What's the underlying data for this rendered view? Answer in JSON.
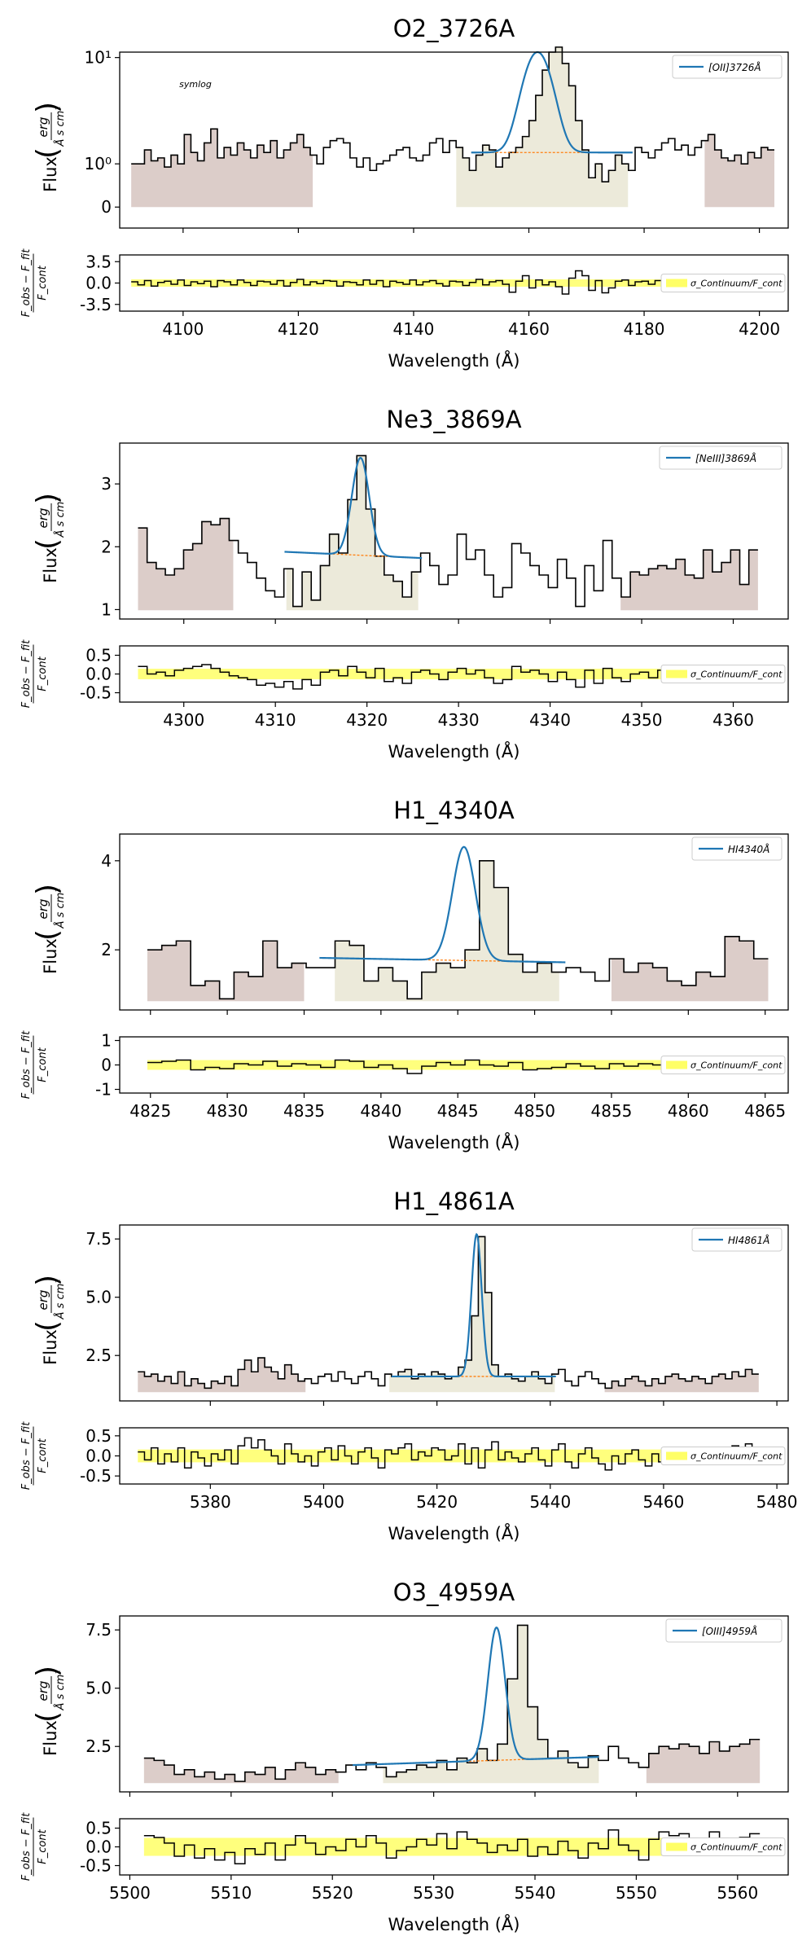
{
  "chart_data": [
    {
      "type": "line",
      "title": "O2_3726A",
      "ylabel": "Flux",
      "ylabel_unit_num": "erg",
      "ylabel_unit_den": "Å s cm²",
      "annotation": "symlog",
      "legend": "[OII]3726Å",
      "xlabel": "Wavelength (Å)",
      "xlim": [
        4089,
        4205
      ],
      "xticks": [
        4100,
        4120,
        4140,
        4160,
        4180,
        4200
      ],
      "yscale": "symlog",
      "yticks": [
        {
          "v": 0,
          "label": "0"
        },
        {
          "v": 1,
          "label": "10⁰"
        },
        {
          "v": 10,
          "label": "10¹"
        }
      ],
      "ylim": [
        -0.4,
        11
      ],
      "step_x": [
        4091,
        4202.6
      ],
      "flux": [
        1.0,
        1.0,
        1.5,
        1.1,
        1.2,
        0.9,
        1.3,
        1.0,
        2.2,
        1.4,
        1.1,
        1.8,
        2.5,
        1.2,
        1.6,
        1.3,
        1.8,
        1.5,
        1.2,
        1.7,
        1.4,
        1.9,
        1.2,
        1.5,
        1.8,
        2.2,
        1.6,
        1.3,
        1.0,
        1.6,
        1.9,
        2.0,
        1.8,
        1.2,
        0.9,
        1.2,
        0.8,
        1.0,
        1.1,
        1.3,
        1.5,
        1.6,
        1.2,
        1.1,
        1.3,
        1.8,
        2.0,
        1.4,
        1.9,
        1.6,
        1.2,
        0.8,
        1.3,
        1.7,
        1.5,
        0.9,
        1.2,
        1.4,
        1.6,
        2.1,
        3.0,
        5.0,
        8.0,
        11.0,
        12.0,
        9.0,
        6.0,
        3.0,
        1.5,
        0.6,
        1.0,
        0.5,
        0.8,
        1.3,
        1.0,
        0.8,
        1.6,
        1.4,
        1.2,
        1.5,
        1.8,
        2.0,
        1.5,
        1.7,
        1.3,
        1.6,
        1.9,
        2.2,
        1.5,
        1.2,
        1.1,
        1.3,
        1.0,
        1.4,
        1.2,
        1.6,
        1.5
      ],
      "fit": {
        "range": [
          4150,
          4178
        ],
        "continuum": 1.4,
        "amp": 9.6,
        "center": 4161.5,
        "sigma": 2.2
      },
      "cont_regions": [
        [
          4091,
          4122.5
        ],
        [
          4190.5,
          4202.6
        ]
      ],
      "line_region": [
        4147.4,
        4177.2
      ],
      "resid_ylim": [
        -4.6,
        4.6
      ],
      "resid_yticks": [
        {
          "v": 3.5,
          "label": "3.5"
        },
        {
          "v": 0,
          "label": "0.0"
        },
        {
          "v": -3.5,
          "label": "-3.5"
        }
      ],
      "sigma": 0.6,
      "resid": [
        0.2,
        -0.3,
        0.4,
        -0.5,
        0.1,
        0.3,
        -0.2,
        0.5,
        -0.4,
        0.2,
        -0.1,
        0.3,
        -0.6,
        0.4,
        0.2,
        -0.3,
        0.5,
        0.1,
        -0.4,
        0.3,
        0.2,
        -0.2,
        0.4,
        -0.5,
        0.1,
        0.6,
        -0.3,
        0.2,
        -0.1,
        0.4,
        0.3,
        -0.5,
        0.2,
        0.1,
        -0.3,
        0.5,
        -0.2,
        0.4,
        -0.6,
        0.3,
        0.1,
        -0.2,
        0.5,
        -0.3,
        0.2,
        0.4,
        -0.1,
        -0.5,
        0.3,
        0.2,
        -0.4,
        0.1,
        0.6,
        -0.3,
        0.2,
        0.4,
        -0.2,
        -1.5,
        0.3,
        1.2,
        -0.8,
        0.5,
        -0.3,
        0.2,
        -0.6,
        -1.8,
        0.8,
        2.0,
        1.2,
        -1.2,
        0.4,
        -1.6,
        -0.8,
        0.3,
        0.5,
        -0.4,
        0.2,
        0.3,
        -0.2,
        0.4,
        0.1,
        -0.3,
        0.5,
        0.2,
        -0.1,
        0.3,
        -0.4,
        0.2,
        0.5,
        -0.3,
        0.1,
        0.2,
        -0.2,
        0.4,
        0.1,
        -0.3,
        0.2
      ]
    },
    {
      "type": "line",
      "title": "Ne3_3869A",
      "ylabel": "Flux",
      "ylabel_unit_num": "erg",
      "ylabel_unit_den": "Å s cm²",
      "annotation": "",
      "legend": "[NeIII]3869Å",
      "xlabel": "Wavelength (Å)",
      "xlim": [
        4293,
        4366
      ],
      "xticks": [
        4300,
        4310,
        4320,
        4330,
        4340,
        4350,
        4360
      ],
      "yscale": "linear",
      "yticks": [
        {
          "v": 1,
          "label": "1"
        },
        {
          "v": 2,
          "label": "2"
        },
        {
          "v": 3,
          "label": "3"
        }
      ],
      "ylim": [
        0.85,
        3.65
      ],
      "step_x": [
        4295,
        4362.7
      ],
      "flux": [
        2.3,
        1.75,
        1.65,
        1.55,
        1.65,
        1.95,
        2.05,
        2.4,
        2.35,
        2.45,
        2.1,
        1.9,
        1.75,
        1.5,
        1.3,
        1.2,
        1.65,
        1.05,
        1.6,
        1.15,
        1.7,
        2.2,
        1.9,
        2.75,
        3.45,
        2.6,
        1.85,
        1.55,
        1.45,
        1.2,
        1.6,
        1.9,
        1.7,
        1.4,
        1.55,
        2.2,
        1.8,
        1.95,
        1.55,
        1.2,
        1.35,
        2.05,
        1.9,
        1.7,
        1.55,
        1.35,
        1.8,
        1.5,
        1.05,
        1.7,
        1.3,
        2.1,
        1.5,
        1.2,
        1.6,
        1.55,
        1.65,
        1.7,
        1.65,
        1.8,
        1.55,
        1.5,
        1.95,
        1.6,
        1.75,
        1.95,
        1.4,
        1.95
      ],
      "fit": {
        "range": [
          4311,
          4326
        ],
        "continuum_start": 1.92,
        "continuum_end": 1.82,
        "amp": 1.55,
        "center": 4319.3,
        "sigma": 0.95
      },
      "cont_regions": [
        [
          4295,
          4305.4
        ],
        [
          4347.7,
          4362.7
        ]
      ],
      "line_region": [
        4311.2,
        4325.6
      ],
      "resid_ylim": [
        -0.75,
        0.75
      ],
      "resid_yticks": [
        {
          "v": 0.5,
          "label": "0.5"
        },
        {
          "v": 0,
          "label": "0.0"
        },
        {
          "v": -0.5,
          "label": "-0.5"
        }
      ],
      "sigma": 0.14,
      "resid": [
        0.2,
        0.0,
        0.05,
        -0.05,
        0.1,
        0.15,
        0.2,
        0.25,
        0.15,
        0.05,
        -0.05,
        -0.1,
        -0.15,
        -0.3,
        -0.25,
        -0.35,
        -0.2,
        -0.4,
        -0.15,
        -0.3,
        0.05,
        0.1,
        -0.05,
        0.2,
        0.05,
        -0.1,
        0.15,
        -0.2,
        -0.1,
        -0.25,
        0.05,
        0.1,
        0.0,
        -0.15,
        0.05,
        0.15,
        0.0,
        0.1,
        -0.1,
        -0.25,
        -0.15,
        0.2,
        0.05,
        0.1,
        0.0,
        -0.2,
        0.05,
        -0.15,
        -0.35,
        0.1,
        -0.25,
        0.15,
        -0.1,
        -0.2,
        0.0,
        0.05,
        -0.1,
        0.1,
        0.05,
        0.0,
        -0.1,
        -0.05,
        0.15,
        0.0,
        0.05,
        0.2,
        -0.1,
        0.15
      ]
    },
    {
      "type": "line",
      "title": "H1_4340A",
      "ylabel": "Flux",
      "ylabel_unit_num": "erg",
      "ylabel_unit_den": "Å s cm²",
      "annotation": "",
      "legend": "HI4340Å",
      "xlabel": "Wavelength (Å)",
      "xlim": [
        4823,
        4866.5
      ],
      "xticks": [
        4825,
        4830,
        4835,
        4840,
        4845,
        4850,
        4855,
        4860,
        4865
      ],
      "yscale": "linear",
      "yticks": [
        {
          "v": 2,
          "label": "2"
        },
        {
          "v": 4,
          "label": "4"
        }
      ],
      "ylim": [
        0.65,
        4.6
      ],
      "step_x": [
        4824.8,
        4865.2
      ],
      "flux": [
        2.0,
        2.1,
        2.2,
        1.2,
        1.3,
        0.9,
        1.5,
        1.4,
        2.2,
        1.6,
        1.7,
        1.6,
        1.6,
        2.2,
        2.1,
        1.3,
        1.6,
        1.3,
        0.9,
        1.5,
        1.7,
        1.6,
        2.0,
        4.0,
        3.4,
        1.9,
        1.5,
        1.7,
        1.5,
        1.6,
        1.5,
        1.3,
        1.8,
        1.5,
        1.7,
        1.6,
        1.3,
        1.2,
        1.5,
        1.4,
        2.3,
        2.2,
        1.8
      ],
      "fit": {
        "range": [
          4836,
          4852
        ],
        "continuum_start": 1.82,
        "continuum_end": 1.72,
        "amp": 2.55,
        "center": 4845.4,
        "sigma": 0.75
      },
      "cont_regions": [
        [
          4824.8,
          4835.0
        ],
        [
          4855.0,
          4865.2
        ]
      ],
      "line_region": [
        4837.0,
        4851.6
      ],
      "resid_ylim": [
        -1.15,
        1.15
      ],
      "resid_yticks": [
        {
          "v": 1,
          "label": "1"
        },
        {
          "v": 0,
          "label": "0"
        },
        {
          "v": -1,
          "label": "-1"
        }
      ],
      "sigma": 0.2,
      "resid": [
        0.1,
        0.15,
        0.2,
        -0.2,
        -0.1,
        -0.15,
        0.05,
        0.0,
        0.15,
        -0.05,
        0.05,
        0.0,
        -0.1,
        0.2,
        0.15,
        -0.1,
        0.0,
        -0.15,
        -0.35,
        -0.05,
        0.1,
        0.0,
        0.2,
        0.0,
        -0.05,
        0.1,
        -0.2,
        -0.15,
        -0.1,
        0.05,
        -0.05,
        -0.15,
        0.05,
        -0.05,
        0.05,
        0.0,
        -0.15,
        -0.2,
        0.0,
        -0.05,
        0.1,
        0.05,
        0.0
      ]
    },
    {
      "type": "line",
      "title": "H1_4861A",
      "ylabel": "Flux",
      "ylabel_unit_num": "erg",
      "ylabel_unit_den": "Å s cm²",
      "annotation": "",
      "legend": "HI4861Å",
      "xlabel": "Wavelength (Å)",
      "xlim": [
        5364,
        5482
      ],
      "xticks": [
        5380,
        5400,
        5420,
        5440,
        5460,
        5480
      ],
      "yscale": "linear",
      "yticks": [
        {
          "v": 2.5,
          "label": "2.5"
        },
        {
          "v": 5.0,
          "label": "5.0"
        },
        {
          "v": 7.5,
          "label": "7.5"
        }
      ],
      "ylim": [
        0.55,
        8.1
      ],
      "step_x": [
        5367.2,
        5476.8
      ],
      "flux": [
        1.8,
        1.6,
        1.7,
        1.4,
        1.6,
        1.3,
        1.8,
        1.2,
        1.5,
        1.3,
        1.1,
        1.4,
        1.3,
        1.6,
        1.2,
        1.9,
        2.3,
        1.8,
        2.4,
        2.0,
        1.8,
        1.5,
        2.1,
        1.7,
        1.4,
        1.5,
        1.3,
        1.6,
        1.7,
        1.4,
        1.8,
        1.5,
        1.3,
        1.6,
        1.8,
        1.5,
        1.2,
        1.7,
        1.6,
        1.8,
        1.9,
        1.5,
        1.7,
        1.6,
        1.8,
        1.7,
        1.5,
        1.6,
        2.0,
        2.3,
        4.2,
        7.6,
        5.2,
        2.1,
        1.6,
        1.7,
        1.5,
        1.4,
        1.6,
        1.8,
        1.5,
        1.3,
        1.7,
        1.9,
        1.4,
        1.2,
        1.6,
        1.8,
        1.5,
        1.3,
        1.1,
        1.4,
        1.2,
        1.5,
        1.6,
        1.4,
        1.2,
        1.5,
        1.3,
        1.6,
        1.7,
        1.5,
        1.4,
        1.6,
        1.5,
        1.3,
        1.6,
        1.7,
        1.5,
        1.8,
        1.6,
        1.9,
        1.7
      ],
      "fit": {
        "range": [
          5412,
          5441
        ],
        "continuum": 1.6,
        "amp": 6.1,
        "center": 5427.0,
        "sigma": 0.9
      },
      "cont_regions": [
        [
          5367.2,
          5396.8
        ],
        [
          5449.6,
          5476.8
        ]
      ],
      "line_region": [
        5411.6,
        5440.8
      ],
      "resid_ylim": [
        -0.7,
        0.7
      ],
      "resid_yticks": [
        {
          "v": 0.5,
          "label": "0.5"
        },
        {
          "v": 0,
          "label": "0.0"
        },
        {
          "v": -0.5,
          "label": "-0.5"
        }
      ],
      "sigma": 0.16,
      "resid": [
        0.1,
        -0.1,
        0.2,
        -0.2,
        0.05,
        -0.15,
        0.2,
        -0.3,
        0.1,
        -0.05,
        -0.25,
        0.05,
        -0.1,
        0.15,
        -0.2,
        0.25,
        0.45,
        0.2,
        0.4,
        0.15,
        0.0,
        -0.2,
        0.3,
        0.05,
        -0.15,
        0.0,
        -0.25,
        0.1,
        0.2,
        -0.1,
        0.25,
        0.0,
        -0.2,
        0.1,
        0.2,
        -0.05,
        -0.3,
        0.15,
        0.05,
        0.2,
        0.3,
        -0.1,
        0.1,
        0.0,
        0.2,
        0.15,
        -0.1,
        0.0,
        0.3,
        -0.2,
        0.2,
        -0.3,
        0.15,
        0.35,
        -0.1,
        0.1,
        -0.05,
        -0.15,
        0.05,
        0.2,
        -0.1,
        -0.25,
        0.15,
        0.3,
        -0.15,
        -0.3,
        0.05,
        0.2,
        -0.05,
        -0.2,
        -0.35,
        0.0,
        -0.2,
        0.05,
        0.15,
        -0.1,
        -0.25,
        0.05,
        -0.15,
        0.1,
        0.2,
        0.0,
        -0.1,
        0.1,
        0.05,
        -0.15,
        0.1,
        0.2,
        0.0,
        0.25,
        0.05,
        0.3,
        0.1
      ]
    },
    {
      "type": "line",
      "title": "O3_4959A",
      "ylabel": "Flux",
      "ylabel_unit_num": "erg",
      "ylabel_unit_den": "Å s cm²",
      "annotation": "",
      "legend": "[OIII]4959Å",
      "xlabel": "Wavelength (Å)",
      "xlim": [
        5499,
        5565
      ],
      "xticks": [
        5500,
        5510,
        5520,
        5530,
        5540,
        5550,
        5560
      ],
      "yscale": "linear",
      "yticks": [
        {
          "v": 2.5,
          "label": "2.5"
        },
        {
          "v": 5.0,
          "label": "5.0"
        },
        {
          "v": 7.5,
          "label": "7.5"
        }
      ],
      "ylim": [
        0.55,
        8.1
      ],
      "step_x": [
        5501.4,
        5562.2
      ],
      "flux": [
        2.0,
        1.9,
        1.7,
        1.3,
        1.5,
        1.2,
        1.4,
        1.1,
        1.3,
        1.0,
        1.4,
        1.3,
        1.6,
        1.1,
        1.5,
        1.8,
        1.6,
        1.3,
        1.5,
        1.4,
        1.7,
        1.5,
        1.8,
        1.6,
        1.2,
        1.4,
        1.5,
        1.7,
        1.6,
        1.9,
        1.5,
        2.0,
        1.8,
        2.4,
        1.9,
        2.6,
        5.4,
        7.7,
        4.2,
        2.8,
        2.0,
        2.3,
        1.8,
        1.6,
        2.1,
        1.9,
        2.5,
        2.0,
        1.8,
        1.6,
        2.2,
        2.5,
        2.4,
        2.6,
        2.5,
        2.2,
        2.7,
        2.3,
        2.5,
        2.6,
        2.8
      ],
      "fit": {
        "range": [
          5522,
          5546.3
        ],
        "continuum_start": 1.7,
        "continuum_end": 2.05,
        "amp": 5.7,
        "center": 5536.2,
        "sigma": 0.85
      },
      "cont_regions": [
        [
          5501.4,
          5520.6
        ],
        [
          5551.0,
          5562.2
        ]
      ],
      "line_region": [
        5525.0,
        5546.3
      ],
      "resid_ylim": [
        -0.75,
        0.75
      ],
      "resid_yticks": [
        {
          "v": 0.5,
          "label": "0.5"
        },
        {
          "v": 0,
          "label": "0.0"
        },
        {
          "v": -0.5,
          "label": "-0.5"
        }
      ],
      "sigma": 0.24,
      "resid": [
        0.3,
        0.25,
        0.1,
        -0.25,
        0.05,
        -0.3,
        -0.05,
        -0.35,
        -0.15,
        -0.45,
        -0.05,
        -0.2,
        0.1,
        -0.35,
        0.05,
        0.3,
        0.1,
        -0.2,
        0.0,
        -0.1,
        0.2,
        0.0,
        0.3,
        0.1,
        -0.3,
        -0.1,
        0.0,
        0.2,
        0.05,
        0.35,
        -0.05,
        0.4,
        0.2,
        0.1,
        -0.15,
        0.05,
        -0.1,
        0.2,
        -0.25,
        0.0,
        -0.2,
        0.15,
        -0.1,
        -0.3,
        0.1,
        -0.05,
        0.45,
        0.05,
        -0.1,
        -0.35,
        0.2,
        0.4,
        0.3,
        0.35,
        0.2,
        -0.05,
        0.4,
        0.0,
        0.2,
        0.25,
        0.35
      ]
    }
  ]
}
